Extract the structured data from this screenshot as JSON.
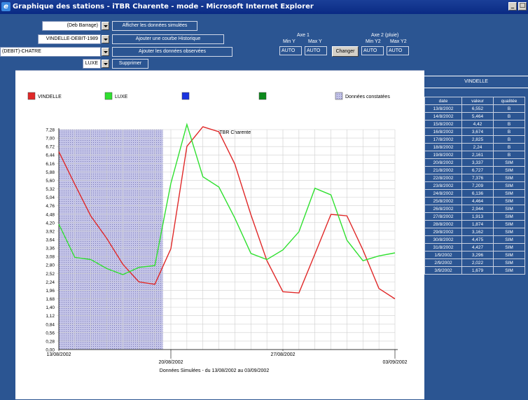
{
  "window": {
    "title": "Graphique des stations - iTBR Charente - mode - Microsoft Internet Explorer",
    "minimize": "_",
    "maximize": "□"
  },
  "controls": {
    "station1": "(Deb Barrage)",
    "station2": "VINDELLE-DEBIT-1989",
    "station3": "(DEBIT)-CHATRE",
    "station4": "LUXE",
    "btn_simulated": "Afficher les données simulées",
    "btn_historic": "Ajouter une courbe Historique",
    "btn_observed": "Ajouter les données observées",
    "btn_delete": "Supprimer",
    "axis1_title": "Axe 1",
    "axis1_min_label": "Min Y",
    "axis1_max_label": "Max Y",
    "axis1_min": "AUTO",
    "axis1_max": "AUTO",
    "btn_change": "Changer",
    "axis2_title": "Axe 2 (pluie)",
    "axis2_min_label": "Min Y2",
    "axis2_max_label": "Max Y2",
    "axis2_min": "AUTO",
    "axis2_max": "AUTO"
  },
  "colors": {
    "vindelle": "#e02828",
    "luxe": "#30e030",
    "blue": "#1a34e0",
    "darkgreen": "#0c8a1c",
    "constatees": "#a8a8d8"
  },
  "chart_data": {
    "type": "line",
    "title": "iTBR Charente",
    "xlabel": "Données Simulées - du 13/08/2002 au 03/09/2002",
    "ylabel": "",
    "legend": [
      "VINDELLE",
      "LUXE",
      "",
      "",
      "Données constatées"
    ],
    "x_tick_labels": [
      {
        "date": "13/08/2002",
        "row": 0
      },
      {
        "date": "20/08/2002",
        "row": 1
      },
      {
        "date": "27/08/2002",
        "row": 0
      },
      {
        "date": "03/09/2002",
        "row": 1
      }
    ],
    "y_ticks": [
      "0,00",
      "0,28",
      "0,56",
      "0,84",
      "1,12",
      "1,40",
      "1,68",
      "1,96",
      "2,24",
      "2,52",
      "2,80",
      "3,08",
      "3,36",
      "3,64",
      "3,92",
      "4,20",
      "4,48",
      "4,76",
      "5,04",
      "5,32",
      "5,60",
      "5,88",
      "6,16",
      "6,44",
      "6,72",
      "7,00",
      "7,28"
    ],
    "ylim": [
      0,
      7.28
    ],
    "x_count": 22,
    "observed_range": [
      0,
      6.5
    ],
    "series": [
      {
        "name": "VINDELLE",
        "color": "#e02828",
        "values": [
          6.552,
          5.464,
          4.42,
          3.674,
          2.825,
          2.24,
          2.161,
          3.337,
          6.727,
          7.376,
          7.209,
          6.136,
          4.464,
          2.944,
          1.913,
          1.874,
          3.162,
          4.475,
          4.427,
          3.296,
          2.022,
          1.679
        ]
      },
      {
        "name": "LUXE",
        "color": "#30e030",
        "values": [
          4.15,
          3.05,
          2.98,
          2.68,
          2.48,
          2.72,
          2.78,
          5.5,
          7.45,
          5.72,
          5.38,
          4.35,
          3.18,
          2.98,
          3.3,
          3.9,
          5.34,
          5.12,
          3.62,
          2.94,
          3.1,
          3.2
        ]
      }
    ]
  },
  "table": {
    "title": "VINDELLE",
    "headers": [
      "date",
      "valeur",
      "qualitée"
    ],
    "rows": [
      [
        "13/8/2002",
        "6,552",
        "B"
      ],
      [
        "14/8/2002",
        "5,464",
        "B"
      ],
      [
        "15/8/2002",
        "4,42",
        "B"
      ],
      [
        "16/8/2002",
        "3,674",
        "B"
      ],
      [
        "17/8/2002",
        "2,825",
        "B"
      ],
      [
        "18/8/2002",
        "2,24",
        "B"
      ],
      [
        "19/8/2002",
        "2,161",
        "B"
      ],
      [
        "20/8/2002",
        "3,337",
        "SIM"
      ],
      [
        "21/8/2002",
        "6,727",
        "SIM"
      ],
      [
        "22/8/2002",
        "7,376",
        "SIM"
      ],
      [
        "23/8/2002",
        "7,209",
        "SIM"
      ],
      [
        "24/8/2002",
        "6,136",
        "SIM"
      ],
      [
        "25/8/2002",
        "4,464",
        "SIM"
      ],
      [
        "26/8/2002",
        "2,944",
        "SIM"
      ],
      [
        "27/8/2002",
        "1,913",
        "SIM"
      ],
      [
        "28/8/2002",
        "1,874",
        "SIM"
      ],
      [
        "29/8/2002",
        "3,162",
        "SIM"
      ],
      [
        "30/8/2002",
        "4,475",
        "SIM"
      ],
      [
        "31/8/2002",
        "4,427",
        "SIM"
      ],
      [
        "1/9/2002",
        "3,296",
        "SIM"
      ],
      [
        "2/9/2002",
        "2,022",
        "SIM"
      ],
      [
        "3/9/2002",
        "1,679",
        "SIM"
      ]
    ]
  }
}
